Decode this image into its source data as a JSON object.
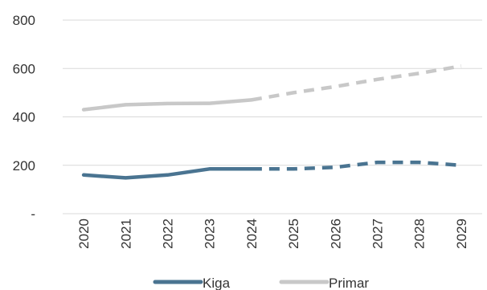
{
  "chart_data": {
    "type": "line",
    "title": "",
    "xlabel": "",
    "ylabel": "",
    "categories": [
      "2020",
      "2021",
      "2022",
      "2023",
      "2024",
      "2025",
      "2026",
      "2027",
      "2028",
      "2029"
    ],
    "ylim": [
      0,
      800
    ],
    "yticks": [
      0,
      200,
      400,
      600,
      800
    ],
    "ytick_labels": [
      "-",
      "200",
      "400",
      "600",
      "800"
    ],
    "grid": true,
    "legend_position": "bottom",
    "projection_starts_after": "2024",
    "series": [
      {
        "name": "Kiga",
        "color": "#4a7491",
        "values": [
          160,
          148,
          160,
          185,
          185,
          185,
          192,
          212,
          212,
          200
        ]
      },
      {
        "name": "Primar",
        "color": "#c8c8c8",
        "values": [
          430,
          450,
          455,
          456,
          470,
          500,
          525,
          555,
          580,
          610
        ]
      }
    ]
  }
}
